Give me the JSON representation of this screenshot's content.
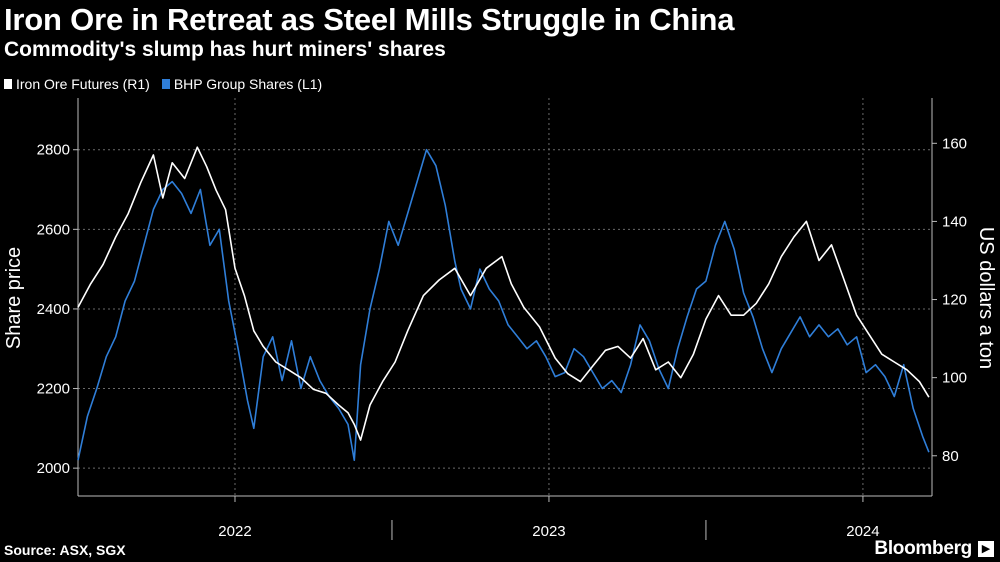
{
  "title": "Iron Ore in Retreat as Steel Mills Struggle in China",
  "subtitle": "Commodity's slump has hurt miners' shares",
  "source": "Source: ASX, SGX",
  "brand": "Bloomberg",
  "brand_mark": "▶",
  "colors": {
    "iron": "#ffffff",
    "bhp": "#2f7ed8",
    "grid": "#6a6a6a",
    "axis": "#bbbbbb"
  },
  "chart_data": {
    "type": "line",
    "title": "Iron Ore in Retreat as Steel Mills Struggle in China",
    "x_range": [
      2021.5,
      2024.22
    ],
    "x_ticks": [
      {
        "label": "2022",
        "value": 2022.0
      },
      {
        "label": "2023",
        "value": 2023.0
      },
      {
        "label": "2024",
        "value": 2024.0
      }
    ],
    "x_boundaries": [
      2022.5,
      2023.5
    ],
    "left_axis": {
      "label": "Share price",
      "range": [
        1930,
        2930
      ],
      "ticks": [
        2000,
        2200,
        2400,
        2600,
        2800
      ]
    },
    "right_axis": {
      "label": "US dollars a ton",
      "range": [
        69.7,
        171.6
      ],
      "ticks": [
        80,
        100,
        120,
        140,
        160
      ]
    },
    "series": [
      {
        "name": "Iron Ore Futures (R1)",
        "axis": "right",
        "points": [
          [
            2021.5,
            118
          ],
          [
            2021.54,
            124
          ],
          [
            2021.58,
            129
          ],
          [
            2021.62,
            136
          ],
          [
            2021.66,
            142
          ],
          [
            2021.7,
            150
          ],
          [
            2021.74,
            157
          ],
          [
            2021.77,
            146
          ],
          [
            2021.8,
            155
          ],
          [
            2021.84,
            151
          ],
          [
            2021.88,
            159
          ],
          [
            2021.91,
            154
          ],
          [
            2021.94,
            148
          ],
          [
            2021.97,
            143
          ],
          [
            2022.0,
            128
          ],
          [
            2022.03,
            121
          ],
          [
            2022.06,
            112
          ],
          [
            2022.09,
            108
          ],
          [
            2022.13,
            104
          ],
          [
            2022.17,
            102
          ],
          [
            2022.21,
            100
          ],
          [
            2022.25,
            97
          ],
          [
            2022.29,
            96
          ],
          [
            2022.33,
            93
          ],
          [
            2022.36,
            91
          ],
          [
            2022.38,
            88
          ],
          [
            2022.4,
            84
          ],
          [
            2022.43,
            93
          ],
          [
            2022.47,
            99
          ],
          [
            2022.51,
            104
          ],
          [
            2022.55,
            112
          ],
          [
            2022.6,
            121
          ],
          [
            2022.65,
            125
          ],
          [
            2022.7,
            128
          ],
          [
            2022.75,
            121
          ],
          [
            2022.8,
            128
          ],
          [
            2022.85,
            131
          ],
          [
            2022.88,
            124
          ],
          [
            2022.92,
            118
          ],
          [
            2022.97,
            113
          ],
          [
            2023.02,
            105
          ],
          [
            2023.06,
            101
          ],
          [
            2023.1,
            99
          ],
          [
            2023.14,
            103
          ],
          [
            2023.18,
            107
          ],
          [
            2023.22,
            108
          ],
          [
            2023.26,
            105
          ],
          [
            2023.3,
            110
          ],
          [
            2023.34,
            102
          ],
          [
            2023.38,
            104
          ],
          [
            2023.42,
            100
          ],
          [
            2023.46,
            106
          ],
          [
            2023.5,
            115
          ],
          [
            2023.54,
            121
          ],
          [
            2023.58,
            116
          ],
          [
            2023.62,
            116
          ],
          [
            2023.66,
            119
          ],
          [
            2023.7,
            124
          ],
          [
            2023.74,
            131
          ],
          [
            2023.78,
            136
          ],
          [
            2023.82,
            140
          ],
          [
            2023.86,
            130
          ],
          [
            2023.9,
            134
          ],
          [
            2023.94,
            125
          ],
          [
            2023.98,
            116
          ],
          [
            2024.02,
            111
          ],
          [
            2024.06,
            106
          ],
          [
            2024.1,
            104
          ],
          [
            2024.14,
            102
          ],
          [
            2024.18,
            99
          ],
          [
            2024.21,
            95
          ]
        ]
      },
      {
        "name": "BHP Group Shares (L1)",
        "axis": "left",
        "points": [
          [
            2021.5,
            2020
          ],
          [
            2021.53,
            2130
          ],
          [
            2021.56,
            2200
          ],
          [
            2021.59,
            2280
          ],
          [
            2021.62,
            2330
          ],
          [
            2021.65,
            2420
          ],
          [
            2021.68,
            2470
          ],
          [
            2021.71,
            2560
          ],
          [
            2021.74,
            2650
          ],
          [
            2021.77,
            2700
          ],
          [
            2021.8,
            2720
          ],
          [
            2021.83,
            2690
          ],
          [
            2021.86,
            2640
          ],
          [
            2021.89,
            2700
          ],
          [
            2021.92,
            2560
          ],
          [
            2021.95,
            2600
          ],
          [
            2021.98,
            2420
          ],
          [
            2022.01,
            2300
          ],
          [
            2022.04,
            2170
          ],
          [
            2022.06,
            2100
          ],
          [
            2022.09,
            2280
          ],
          [
            2022.12,
            2330
          ],
          [
            2022.15,
            2220
          ],
          [
            2022.18,
            2320
          ],
          [
            2022.21,
            2200
          ],
          [
            2022.24,
            2280
          ],
          [
            2022.27,
            2220
          ],
          [
            2022.3,
            2180
          ],
          [
            2022.33,
            2150
          ],
          [
            2022.36,
            2110
          ],
          [
            2022.38,
            2020
          ],
          [
            2022.4,
            2260
          ],
          [
            2022.43,
            2400
          ],
          [
            2022.46,
            2500
          ],
          [
            2022.49,
            2620
          ],
          [
            2022.52,
            2560
          ],
          [
            2022.55,
            2640
          ],
          [
            2022.58,
            2720
          ],
          [
            2022.61,
            2800
          ],
          [
            2022.64,
            2760
          ],
          [
            2022.67,
            2660
          ],
          [
            2022.7,
            2520
          ],
          [
            2022.72,
            2450
          ],
          [
            2022.75,
            2400
          ],
          [
            2022.78,
            2500
          ],
          [
            2022.81,
            2450
          ],
          [
            2022.84,
            2420
          ],
          [
            2022.87,
            2360
          ],
          [
            2022.9,
            2330
          ],
          [
            2022.93,
            2300
          ],
          [
            2022.96,
            2320
          ],
          [
            2022.99,
            2280
          ],
          [
            2023.02,
            2230
          ],
          [
            2023.05,
            2240
          ],
          [
            2023.08,
            2300
          ],
          [
            2023.11,
            2280
          ],
          [
            2023.14,
            2240
          ],
          [
            2023.17,
            2200
          ],
          [
            2023.2,
            2220
          ],
          [
            2023.23,
            2190
          ],
          [
            2023.26,
            2260
          ],
          [
            2023.29,
            2360
          ],
          [
            2023.32,
            2320
          ],
          [
            2023.35,
            2250
          ],
          [
            2023.38,
            2200
          ],
          [
            2023.41,
            2300
          ],
          [
            2023.44,
            2380
          ],
          [
            2023.47,
            2450
          ],
          [
            2023.5,
            2470
          ],
          [
            2023.53,
            2560
          ],
          [
            2023.56,
            2620
          ],
          [
            2023.59,
            2550
          ],
          [
            2023.62,
            2440
          ],
          [
            2023.65,
            2380
          ],
          [
            2023.68,
            2300
          ],
          [
            2023.71,
            2240
          ],
          [
            2023.74,
            2300
          ],
          [
            2023.77,
            2340
          ],
          [
            2023.8,
            2380
          ],
          [
            2023.83,
            2330
          ],
          [
            2023.86,
            2360
          ],
          [
            2023.89,
            2330
          ],
          [
            2023.92,
            2350
          ],
          [
            2023.95,
            2310
          ],
          [
            2023.98,
            2330
          ],
          [
            2024.01,
            2240
          ],
          [
            2024.04,
            2260
          ],
          [
            2024.07,
            2230
          ],
          [
            2024.1,
            2180
          ],
          [
            2024.13,
            2260
          ],
          [
            2024.16,
            2150
          ],
          [
            2024.19,
            2080
          ],
          [
            2024.21,
            2040
          ]
        ]
      }
    ]
  }
}
